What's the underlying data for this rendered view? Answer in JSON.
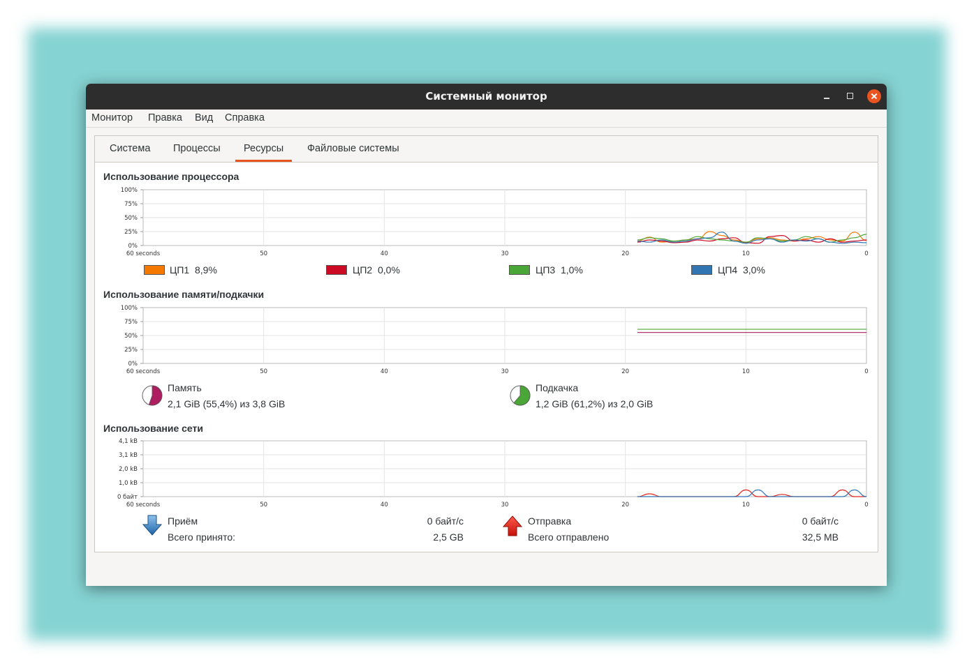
{
  "window": {
    "title": "Системный монитор"
  },
  "menu": [
    "Монитор",
    "Правка",
    "Вид",
    "Справка"
  ],
  "tabs": [
    {
      "label": "Система",
      "active": false
    },
    {
      "label": "Процессы",
      "active": false
    },
    {
      "label": "Ресурсы",
      "active": true
    },
    {
      "label": "Файловые системы",
      "active": false
    }
  ],
  "cpu": {
    "title": "Использование процессора",
    "ylabels": [
      "100%",
      "75%",
      "50%",
      "25%",
      "0%"
    ],
    "xlabels": [
      "60 seconds",
      "50",
      "40",
      "30",
      "20",
      "10",
      "0"
    ],
    "legend": [
      {
        "label": "ЦП1",
        "value": "8,9%",
        "color": "#f57900"
      },
      {
        "label": "ЦП2",
        "value": "0,0%",
        "color": "#cc0a24"
      },
      {
        "label": "ЦП3",
        "value": "1,0%",
        "color": "#4aa637"
      },
      {
        "label": "ЦП4",
        "value": "3,0%",
        "color": "#3175b3"
      }
    ]
  },
  "memory": {
    "title": "Использование памяти/подкачки",
    "ylabels": [
      "100%",
      "75%",
      "50%",
      "25%",
      "0%"
    ],
    "xlabels": [
      "60 seconds",
      "50",
      "40",
      "30",
      "20",
      "10",
      "0"
    ],
    "ram": {
      "label": "Память",
      "detail": "2,1 GiB (55,4%) из 3,8 GiB",
      "fraction": 0.554,
      "color": "#ad1d5f"
    },
    "swap": {
      "label": "Подкачка",
      "detail": "1,2 GiB (61,2%) из 2,0 GiB",
      "fraction": 0.612,
      "color": "#4aa637"
    }
  },
  "network": {
    "title": "Использование сети",
    "ylabels": [
      "4,1 kB",
      "3,1 kB",
      "2,0 kB",
      "1,0 kB",
      "0 байт"
    ],
    "xlabels": [
      "60 seconds",
      "50",
      "40",
      "30",
      "20",
      "10",
      "0"
    ],
    "receive": {
      "label": "Приём",
      "rate": "0 байт/с",
      "total_label": "Всего принято:",
      "total": "2,5 GB",
      "color": "#3175b3"
    },
    "send": {
      "label": "Отправка",
      "rate": "0 байт/с",
      "total_label": "Всего отправлено",
      "total": "32,5 MB",
      "color": "#e0241c"
    }
  }
}
